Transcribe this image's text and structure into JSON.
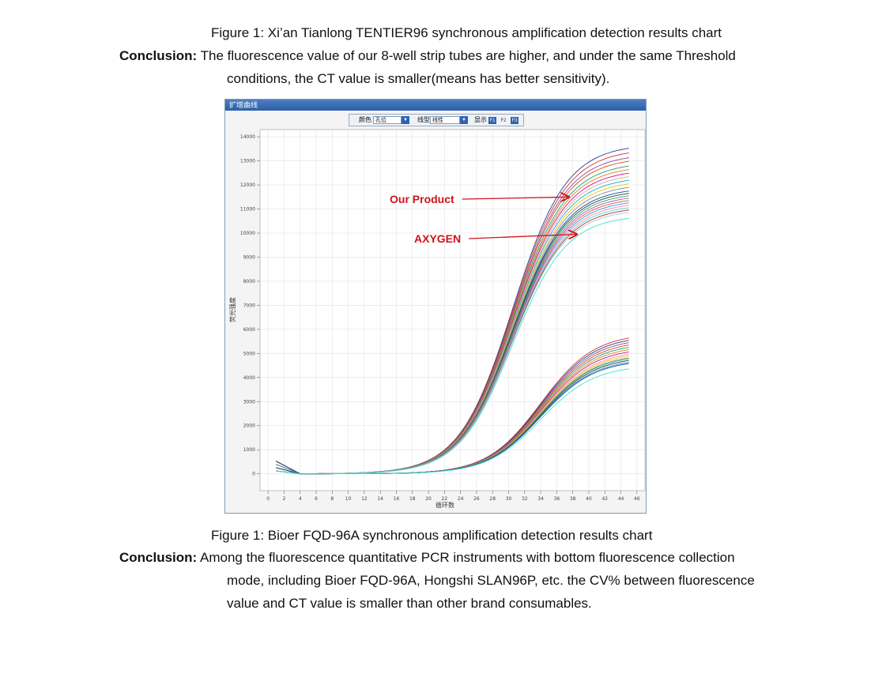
{
  "caption_top": "Figure 1: Xi’an Tianlong TENTIER96 synchronous amplification detection results chart",
  "conclusion_top": {
    "label": "Conclusion:",
    "line1": " The fluorescence value of our 8-well strip tubes are higher, and under the same Threshold",
    "line2": "conditions, the CT value is smaller(means has better sensitivity)."
  },
  "window": {
    "title": "扩增曲线",
    "toolbar": {
      "color_label": "颜色",
      "color_value": "孔位",
      "linetype_label": "线型",
      "linetype_value": "线性",
      "display_label": "显示",
      "keys": [
        "F1",
        "F2",
        "F3"
      ]
    }
  },
  "chart_data": {
    "type": "line",
    "xlabel": "循环数",
    "ylabel": "荧光强度",
    "xlim": [
      -1,
      47
    ],
    "ylim": [
      -700,
      14300
    ],
    "x_ticks": [
      0,
      2,
      4,
      6,
      8,
      10,
      12,
      14,
      16,
      18,
      20,
      22,
      24,
      26,
      28,
      30,
      32,
      34,
      36,
      38,
      40,
      42,
      44,
      46
    ],
    "y_ticks": [
      0,
      1000,
      2000,
      3000,
      4000,
      5000,
      6000,
      7000,
      8000,
      9000,
      10000,
      11000,
      12000,
      13000,
      14000
    ],
    "grid": true,
    "x_start": 1,
    "x_end": 45,
    "groups": [
      {
        "midpoint_cycle": 30.5,
        "slope": 0.3,
        "curves": [
          {
            "color": "#2b3a8f",
            "plateau": 13700
          },
          {
            "color": "#c0392b",
            "plateau": 13500
          },
          {
            "color": "#8e44ad",
            "plateau": 13300
          },
          {
            "color": "#d35400",
            "plateau": 13150
          },
          {
            "color": "#16a085",
            "plateau": 12950
          },
          {
            "color": "#e67e22",
            "plateau": 12800
          },
          {
            "color": "#c71585",
            "plateau": 12650
          },
          {
            "color": "#e8a0a0",
            "plateau": 12500
          },
          {
            "color": "#00b5d8",
            "plateau": 12350
          },
          {
            "color": "#f1c40f",
            "plateau": 12200
          },
          {
            "color": "#7f8c8d",
            "plateau": 12050
          },
          {
            "color": "#1a4d8f",
            "plateau": 11900
          },
          {
            "color": "#2c3e50",
            "plateau": 11800
          },
          {
            "color": "#27ae60",
            "plateau": 11700
          },
          {
            "color": "#9b59b6",
            "plateau": 11600
          },
          {
            "color": "#e74c3c",
            "plateau": 11500
          },
          {
            "color": "#3498db",
            "plateau": 11400
          },
          {
            "color": "#ff7fc0",
            "plateau": 11300
          },
          {
            "color": "#66cccc",
            "plateau": 11200
          },
          {
            "color": "#8b4513",
            "plateau": 11100
          },
          {
            "color": "#b0c4de",
            "plateau": 11000
          },
          {
            "color": "#40e0d0",
            "plateau": 10750
          }
        ]
      },
      {
        "midpoint_cycle": 34.0,
        "slope": 0.3,
        "curves": [
          {
            "color": "#c0392b",
            "plateau": 5850
          },
          {
            "color": "#2b3a8f",
            "plateau": 5750
          },
          {
            "color": "#8e44ad",
            "plateau": 5650
          },
          {
            "color": "#d35400",
            "plateau": 5550
          },
          {
            "color": "#16a085",
            "plateau": 5450
          },
          {
            "color": "#e67e22",
            "plateau": 5350
          },
          {
            "color": "#c71585",
            "plateau": 5250
          },
          {
            "color": "#e8a0a0",
            "plateau": 5150
          },
          {
            "color": "#f1c40f",
            "plateau": 5080
          },
          {
            "color": "#7f8c8d",
            "plateau": 5000
          },
          {
            "color": "#27ae60",
            "plateau": 4950
          },
          {
            "color": "#2c3e50",
            "plateau": 4880
          },
          {
            "color": "#3498db",
            "plateau": 4800
          },
          {
            "color": "#1a4d8f",
            "plateau": 4750
          },
          {
            "color": "#40e0d0",
            "plateau": 4520
          }
        ]
      }
    ],
    "annotations": [
      {
        "text": "Our Product",
        "arrow_to": [
          37.5,
          11500
        ]
      },
      {
        "text": "AXYGEN",
        "arrow_to": [
          38.5,
          9950
        ]
      }
    ]
  },
  "caption_bottom": "Figure 1: Bioer FQD-96A synchronous amplification detection results chart",
  "conclusion_bottom": {
    "label": "Conclusion:",
    "line1": " Among the fluorescence quantitative PCR instruments with bottom fluorescence collection",
    "line2": "mode, including Bioer FQD-96A, Hongshi SLAN96P, etc. the CV% between fluorescence",
    "line3": "value and CT value is smaller than other brand consumables."
  }
}
